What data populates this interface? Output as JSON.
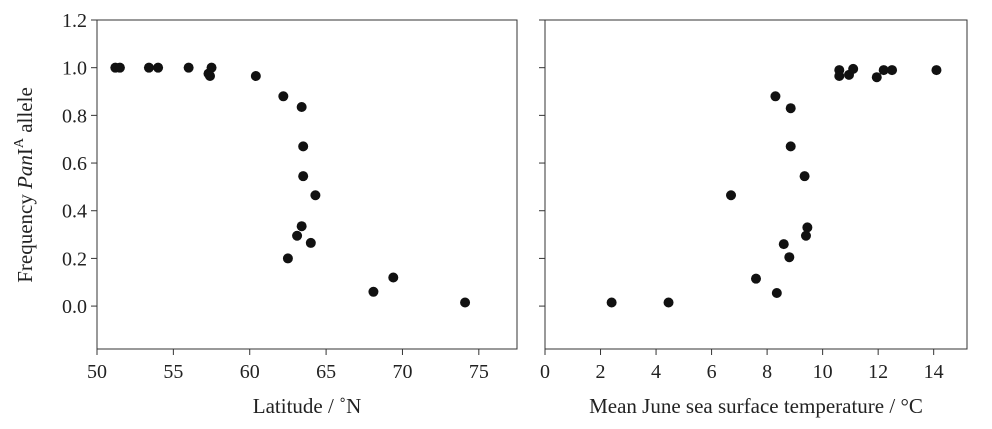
{
  "y_label": {
    "prefix": "Frequency ",
    "gene": "Pan",
    "roman": "I",
    "superscript": "A",
    "suffix": " allele"
  },
  "chart_data": [
    {
      "type": "scatter",
      "xlabel": "Latitude / ˚N",
      "xlim": [
        50,
        77.5
      ],
      "ylim": [
        -0.18,
        1.2
      ],
      "xticks": [
        50,
        55,
        60,
        65,
        70,
        75
      ],
      "yticks": [
        0.0,
        0.2,
        0.4,
        0.6,
        0.8,
        1.0,
        1.2
      ],
      "points": [
        {
          "x": 51.2,
          "y": 1.0
        },
        {
          "x": 51.5,
          "y": 1.0
        },
        {
          "x": 53.4,
          "y": 1.0
        },
        {
          "x": 54.0,
          "y": 1.0
        },
        {
          "x": 56.0,
          "y": 1.0
        },
        {
          "x": 57.3,
          "y": 0.975
        },
        {
          "x": 57.5,
          "y": 1.0
        },
        {
          "x": 57.4,
          "y": 0.965
        },
        {
          "x": 60.4,
          "y": 0.965
        },
        {
          "x": 62.2,
          "y": 0.88
        },
        {
          "x": 63.4,
          "y": 0.835
        },
        {
          "x": 63.5,
          "y": 0.67
        },
        {
          "x": 63.5,
          "y": 0.545
        },
        {
          "x": 64.3,
          "y": 0.465
        },
        {
          "x": 63.4,
          "y": 0.335
        },
        {
          "x": 63.1,
          "y": 0.295
        },
        {
          "x": 64.0,
          "y": 0.265
        },
        {
          "x": 62.5,
          "y": 0.2
        },
        {
          "x": 68.1,
          "y": 0.06
        },
        {
          "x": 69.4,
          "y": 0.12
        },
        {
          "x": 74.1,
          "y": 0.015
        }
      ]
    },
    {
      "type": "scatter",
      "xlabel": "Mean June sea surface temperature / °C",
      "xlim": [
        0,
        15.2
      ],
      "ylim": [
        -0.18,
        1.2
      ],
      "xticks": [
        0,
        2,
        4,
        6,
        8,
        10,
        12,
        14
      ],
      "yticks": [
        0.0,
        0.2,
        0.4,
        0.6,
        0.8,
        1.0,
        1.2
      ],
      "points": [
        {
          "x": 2.4,
          "y": 0.015
        },
        {
          "x": 4.45,
          "y": 0.015
        },
        {
          "x": 6.7,
          "y": 0.465
        },
        {
          "x": 7.6,
          "y": 0.115
        },
        {
          "x": 8.35,
          "y": 0.055
        },
        {
          "x": 8.3,
          "y": 0.88
        },
        {
          "x": 8.85,
          "y": 0.83
        },
        {
          "x": 8.85,
          "y": 0.67
        },
        {
          "x": 8.6,
          "y": 0.26
        },
        {
          "x": 8.8,
          "y": 0.205
        },
        {
          "x": 9.35,
          "y": 0.545
        },
        {
          "x": 9.45,
          "y": 0.33
        },
        {
          "x": 9.4,
          "y": 0.295
        },
        {
          "x": 10.6,
          "y": 0.99
        },
        {
          "x": 10.6,
          "y": 0.965
        },
        {
          "x": 10.95,
          "y": 0.97
        },
        {
          "x": 11.1,
          "y": 0.995
        },
        {
          "x": 11.95,
          "y": 0.96
        },
        {
          "x": 12.2,
          "y": 0.99
        },
        {
          "x": 12.5,
          "y": 0.99
        },
        {
          "x": 14.1,
          "y": 0.99
        }
      ]
    }
  ]
}
